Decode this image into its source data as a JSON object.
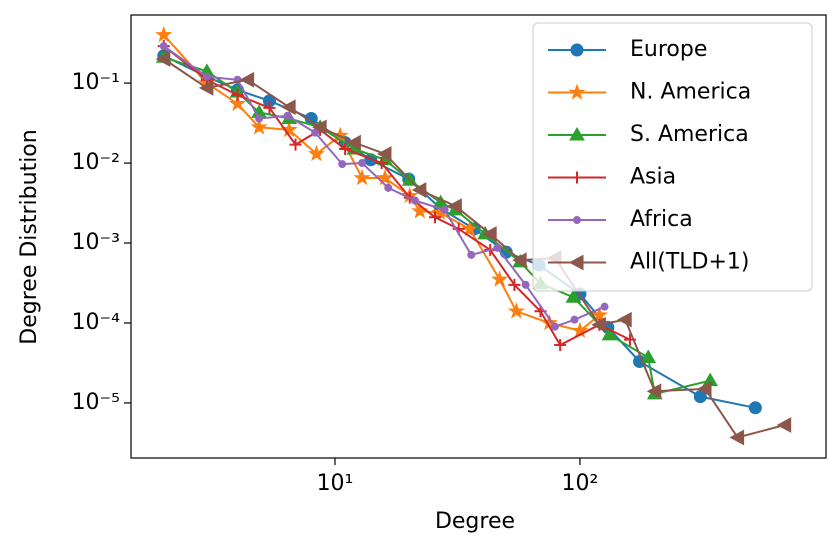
{
  "chart_data": {
    "type": "line",
    "xlabel": "Degree",
    "ylabel": "Degree Distribution",
    "log_x": true,
    "log_y": true,
    "legend": "upper right",
    "xlim": [
      1.47,
      1010
    ],
    "ylim": [
      2.05e-06,
      0.71
    ],
    "xticks": [
      {
        "value": 10,
        "label": "10¹"
      },
      {
        "value": 100,
        "label": "10²"
      }
    ],
    "yticks": [
      {
        "value": 0.1,
        "label": "10⁻¹"
      },
      {
        "value": 0.01,
        "label": "10⁻²"
      },
      {
        "value": 0.001,
        "label": "10⁻³"
      },
      {
        "value": 0.0001,
        "label": "10⁻⁴"
      },
      {
        "value": 1e-05,
        "label": "10⁻⁵"
      }
    ],
    "series": [
      {
        "name": "Europe",
        "color": "#1f77b4",
        "marker": "o",
        "x": [
          2,
          3,
          4,
          5.4,
          8,
          11,
          14,
          20,
          27,
          37,
          50,
          68,
          100,
          130,
          175,
          310,
          520
        ],
        "values": [
          0.22,
          0.12,
          0.082,
          0.06,
          0.036,
          0.018,
          0.011,
          0.0063,
          0.0027,
          0.0015,
          0.00077,
          0.00053,
          0.00023,
          8.8e-05,
          3.3e-05,
          1.2e-05,
          8.7e-06
        ]
      },
      {
        "name": "N. America",
        "color": "#ff7f0e",
        "marker": "*",
        "x": [
          2,
          3,
          4,
          4.9,
          6.5,
          8.4,
          10.5,
          12.9,
          16,
          20.2,
          22.2,
          26.8,
          35.5,
          47,
          55,
          75,
          100,
          120
        ],
        "values": [
          0.4,
          0.1,
          0.055,
          0.028,
          0.026,
          0.013,
          0.022,
          0.0065,
          0.0065,
          0.0039,
          0.0025,
          0.0024,
          0.0015,
          0.00035,
          0.00014,
          0.0001,
          8e-05,
          0.000125
        ]
      },
      {
        "name": "S. America",
        "color": "#2ca02c",
        "marker": "^",
        "x": [
          2,
          3,
          4,
          4.9,
          6.5,
          8.7,
          12,
          16,
          20.2,
          27,
          31,
          41,
          57,
          69,
          94,
          132,
          190,
          202,
          340
        ],
        "values": [
          0.21,
          0.14,
          0.077,
          0.043,
          0.036,
          0.028,
          0.015,
          0.011,
          0.0061,
          0.0032,
          0.0026,
          0.0013,
          0.00058,
          0.00031,
          0.00021,
          7.1e-05,
          3.7e-05,
          1.3e-05,
          1.9e-05
        ]
      },
      {
        "name": "Asia",
        "color": "#d62728",
        "marker": "+",
        "x": [
          2,
          3,
          4,
          5.4,
          6.9,
          8.7,
          11,
          15.5,
          20.2,
          25.6,
          32,
          43,
          54,
          69,
          83,
          120,
          160
        ],
        "values": [
          0.29,
          0.11,
          0.071,
          0.049,
          0.017,
          0.026,
          0.015,
          0.01,
          0.0037,
          0.0021,
          0.0015,
          0.00082,
          0.0003,
          0.00014,
          5.3e-05,
          9.5e-05,
          6.2e-05
        ]
      },
      {
        "name": "Africa",
        "color": "#9467bd",
        "marker": ".",
        "x": [
          2,
          3,
          4,
          4.9,
          6.4,
          8.3,
          10.7,
          12.9,
          16.5,
          21.2,
          28,
          36,
          46,
          60,
          79,
          95,
          126
        ],
        "values": [
          0.29,
          0.12,
          0.11,
          0.036,
          0.039,
          0.024,
          0.0097,
          0.01,
          0.0049,
          0.0034,
          0.0026,
          0.00071,
          0.00087,
          0.0003,
          9e-05,
          0.00011,
          0.00016
        ]
      },
      {
        "name": "All(TLD+1)",
        "color": "#8c564b",
        "marker": "<",
        "x": [
          2,
          3,
          4.4,
          6.5,
          8.7,
          12,
          16,
          22.2,
          31,
          43,
          57,
          79,
          120,
          153,
          202,
          324,
          440,
          685
        ],
        "values": [
          0.2,
          0.087,
          0.11,
          0.05,
          0.028,
          0.018,
          0.013,
          0.0046,
          0.0029,
          0.0013,
          0.00061,
          0.00065,
          9.5e-05,
          0.00011,
          1.4e-05,
          1.5e-05,
          3.7e-06,
          5.3e-06
        ]
      }
    ]
  }
}
